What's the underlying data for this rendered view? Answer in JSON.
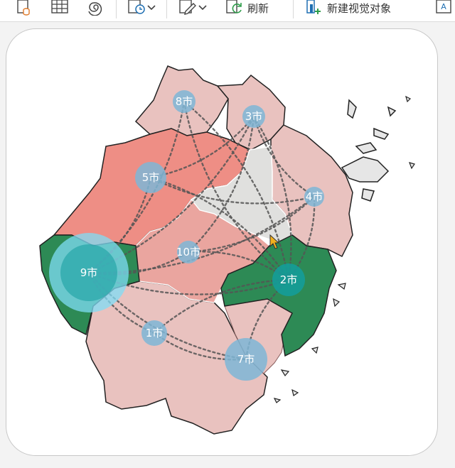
{
  "toolbar": {
    "refresh_label": "刷新",
    "new_visual_label": "新建视觉对象"
  },
  "map": {
    "colors": {
      "light_region": "#e9c2bf",
      "mid_region": "#eaa59f",
      "salmon_region": "#ee8e85",
      "grey_region": "#e0e0de",
      "green_region": "#2d8a55",
      "bubble": "#7eb6d6",
      "bubble_large": "#7fdcf5",
      "bubble_dark": "#139d9e",
      "flow_line": "#555555"
    },
    "cities": [
      {
        "label": "8市"
      },
      {
        "label": "3市"
      },
      {
        "label": "5市"
      },
      {
        "label": "4市"
      },
      {
        "label": "10市"
      },
      {
        "label": "9市"
      },
      {
        "label": "2市"
      },
      {
        "label": "1市"
      },
      {
        "label": "7市"
      }
    ]
  }
}
